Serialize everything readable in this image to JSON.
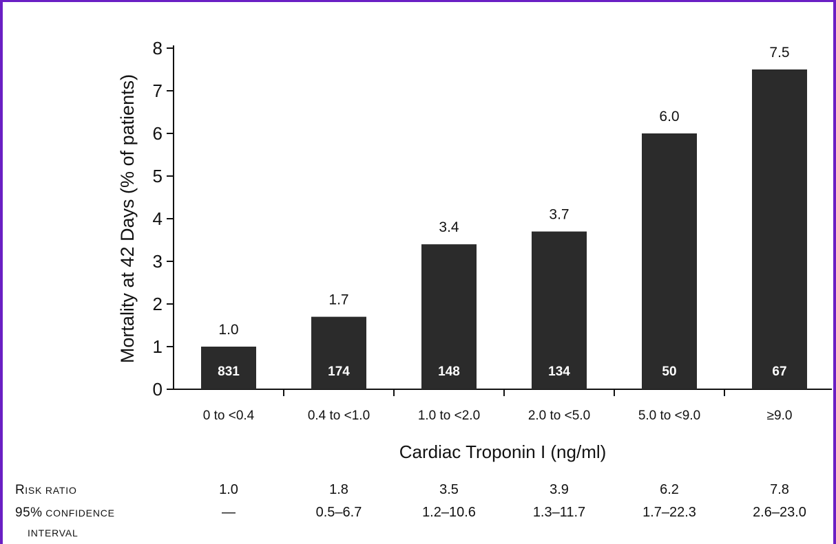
{
  "colors": {
    "border": "#6a1fc4",
    "bar": "#2b2b2b",
    "text": "#111111",
    "bar_label": "#ffffff"
  },
  "chart_data": {
    "type": "bar",
    "title": "",
    "xlabel": "Cardiac Troponin I (ng/ml)",
    "ylabel": "Mortality at 42 Days (% of patients)",
    "ylim": [
      0,
      8
    ],
    "yticks": [
      "0",
      "1",
      "2",
      "3",
      "4",
      "5",
      "6",
      "7",
      "8"
    ],
    "categories": [
      "0 to <0.4",
      "0.4 to <1.0",
      "1.0 to <2.0",
      "2.0 to <5.0",
      "5.0 to <9.0",
      "≥9.0"
    ],
    "values": [
      1.0,
      1.7,
      3.4,
      3.7,
      6.0,
      7.5
    ],
    "value_labels": [
      "1.0",
      "1.7",
      "3.4",
      "3.7",
      "6.0",
      "7.5"
    ],
    "patient_counts": [
      "831",
      "174",
      "148",
      "134",
      "50",
      "67"
    ],
    "grid": false,
    "legend": "none"
  },
  "table": {
    "risk_ratio_label_cap": "R",
    "risk_ratio_label_rest": "ISK RATIO",
    "ci_label_main": "95%",
    "ci_label_rest": " CONFIDENCE",
    "ci_label_line2": "INTERVAL",
    "risk_ratios": [
      "1.0",
      "1.8",
      "3.5",
      "3.9",
      "6.2",
      "7.8"
    ],
    "confidence_intervals": [
      "—",
      "0.5–6.7",
      "1.2–10.6",
      "1.3–11.7",
      "1.7–22.3",
      "2.6–23.0"
    ]
  }
}
